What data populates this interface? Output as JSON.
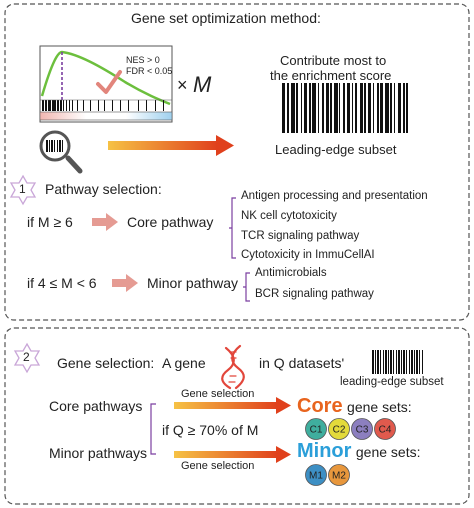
{
  "title": "Gene set optimization method:",
  "gsea": {
    "nes": "NES > 0",
    "fdr": "FDR < 0.05",
    "times": "×",
    "M": "M"
  },
  "contribute": {
    "line1": "Contribute most to",
    "line2": "the enrichment score"
  },
  "leading_edge_label": "Leading-edge subset",
  "step1": {
    "number": "1",
    "title": "Pathway selection:",
    "cond_core": "if M ≥ 6",
    "core_label": "Core pathway",
    "core_items": [
      "Antigen processing and presentation",
      "NK cell cytotoxicity",
      "TCR signaling pathway",
      "Cytotoxicity in ImmuCellAI"
    ],
    "cond_minor": "if 4 ≤ M < 6",
    "minor_label": "Minor pathway",
    "minor_items": [
      "Antimicrobials",
      "BCR signaling pathway"
    ]
  },
  "step2": {
    "number": "2",
    "title_prefix": "Gene selection:",
    "title_a_gene": "A gene",
    "title_suffix": "in Q datasets'",
    "leading_edge": "leading-edge subset",
    "core_pathways": "Core pathways",
    "minor_pathways": "Minor pathways",
    "gene_selection_top": "Gene selection",
    "gene_selection_bottom": "Gene selection",
    "condition": "if Q ≥ 70% of M",
    "core_word": "Core",
    "core_rest": "gene sets:",
    "minor_word": "Minor",
    "minor_rest": "gene sets:",
    "core_sets": [
      "C1",
      "C2",
      "C3",
      "C4"
    ],
    "minor_sets": [
      "M1",
      "M2"
    ]
  },
  "colors": {
    "core_orange": "#e8641e",
    "minor_blue": "#2b9fd9",
    "purple": "#7b3fa0",
    "arrow_pink": "#e59b93",
    "c1": "#3fae9e",
    "c2": "#e3da3b",
    "c3": "#8c7fbf",
    "c4": "#e05a4d",
    "m1": "#3d8fc4",
    "m2": "#e8973c"
  }
}
